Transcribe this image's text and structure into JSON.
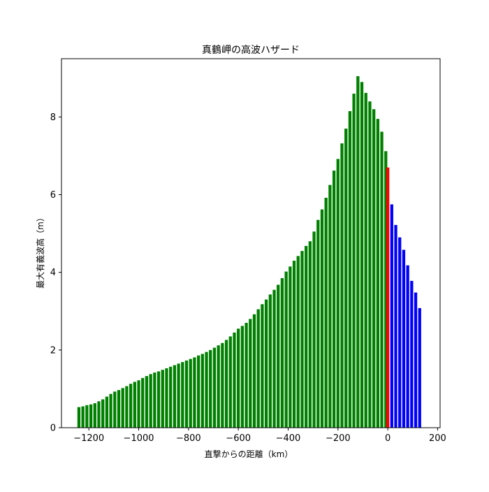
{
  "chart_data": {
    "type": "bar",
    "title": "真鶴岬の高波ハザード",
    "xlabel": "直撃からの距離（km）",
    "ylabel": "最大有義波高（m）",
    "xlim": [
      -1310,
      210
    ],
    "ylim": [
      0,
      9.5
    ],
    "xticks": [
      -1200,
      -1000,
      -800,
      -600,
      -400,
      -200,
      0,
      200
    ],
    "yticks": [
      0,
      2,
      4,
      6,
      8
    ],
    "xtick_labels": [
      "−1200",
      "−1000",
      "−800",
      "−600",
      "−400",
      "−200",
      "0",
      "200"
    ],
    "ytick_labels": [
      "0",
      "2",
      "4",
      "6",
      "8"
    ],
    "bar_width_km": 12,
    "grid": false,
    "colors": {
      "before": "#008000",
      "hit": "#ff0000",
      "after": "#0000ff"
    },
    "series": [
      {
        "color_key": "before",
        "x": [
          -1240,
          -1224,
          -1208,
          -1192,
          -1176,
          -1160,
          -1144,
          -1128,
          -1112,
          -1096,
          -1080,
          -1064,
          -1048,
          -1032,
          -1016,
          -1000,
          -984,
          -968,
          -952,
          -936,
          -920,
          -904,
          -888,
          -872,
          -856,
          -840,
          -824,
          -808,
          -792,
          -776,
          -760,
          -744,
          -728,
          -712,
          -696,
          -680,
          -664,
          -648,
          -632,
          -616,
          -600,
          -584,
          -568,
          -552,
          -536,
          -520,
          -504,
          -488,
          -472,
          -456,
          -440,
          -424,
          -408,
          -392,
          -376,
          -360,
          -344,
          -328,
          -312,
          -296,
          -280,
          -264,
          -248,
          -232,
          -216,
          -200,
          -184,
          -168,
          -152,
          -136,
          -120,
          -104,
          -88,
          -72,
          -56,
          -40,
          -24,
          -8
        ],
        "values": [
          0.53,
          0.55,
          0.58,
          0.6,
          0.63,
          0.68,
          0.73,
          0.8,
          0.87,
          0.93,
          0.97,
          1.02,
          1.07,
          1.13,
          1.18,
          1.22,
          1.28,
          1.33,
          1.38,
          1.42,
          1.45,
          1.49,
          1.53,
          1.57,
          1.61,
          1.65,
          1.69,
          1.73,
          1.77,
          1.81,
          1.86,
          1.9,
          1.95,
          2.0,
          2.06,
          2.12,
          2.18,
          2.26,
          2.35,
          2.45,
          2.55,
          2.62,
          2.7,
          2.8,
          2.92,
          3.05,
          3.18,
          3.3,
          3.43,
          3.55,
          3.68,
          3.85,
          4.02,
          4.15,
          4.3,
          4.42,
          4.55,
          4.68,
          4.8,
          5.05,
          5.35,
          5.62,
          5.92,
          6.25,
          6.62,
          6.92,
          7.32,
          7.7,
          8.15,
          8.6,
          9.05,
          8.9,
          8.62,
          8.4,
          8.2,
          7.95,
          7.62,
          7.12
        ]
      },
      {
        "color_key": "hit",
        "x": [
          0
        ],
        "values": [
          6.7
        ]
      },
      {
        "color_key": "after",
        "x": [
          16,
          32,
          48,
          64,
          80,
          96,
          112,
          128
        ],
        "values": [
          5.75,
          5.22,
          4.9,
          4.58,
          4.18,
          3.78,
          3.48,
          3.08
        ]
      }
    ]
  }
}
